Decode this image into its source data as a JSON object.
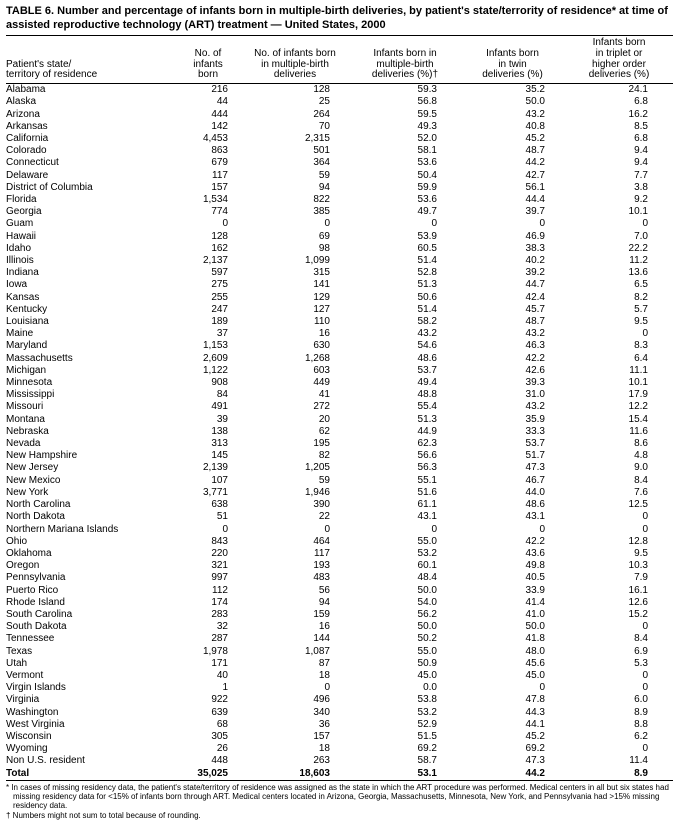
{
  "title": "TABLE 6. Number and percentage of infants born in multiple-birth deliveries, by patient's state/terrority of residence* at time of assisted reproductive technology (ART) treatment — United States, 2000",
  "table": {
    "columns": [
      {
        "lines": [
          "Patient's state/",
          "territory of residence"
        ]
      },
      {
        "lines": [
          "No. of",
          "infants",
          "born"
        ]
      },
      {
        "lines": [
          "No. of infants born",
          "in multiple-birth",
          "deliveries"
        ]
      },
      {
        "lines": [
          "Infants born in",
          "multiple-birth",
          "deliveries (%)†"
        ]
      },
      {
        "lines": [
          "Infants born",
          "in twin",
          "deliveries (%)"
        ]
      },
      {
        "lines": [
          "Infants born",
          "in triplet or",
          "higher order",
          "deliveries (%)"
        ]
      }
    ],
    "rows": [
      [
        "Alabama",
        "216",
        "128",
        "59.3",
        "35.2",
        "24.1"
      ],
      [
        "Alaska",
        "44",
        "25",
        "56.8",
        "50.0",
        "6.8"
      ],
      [
        "Arizona",
        "444",
        "264",
        "59.5",
        "43.2",
        "16.2"
      ],
      [
        "Arkansas",
        "142",
        "70",
        "49.3",
        "40.8",
        "8.5"
      ],
      [
        "California",
        "4,453",
        "2,315",
        "52.0",
        "45.2",
        "6.8"
      ],
      [
        "Colorado",
        "863",
        "501",
        "58.1",
        "48.7",
        "9.4"
      ],
      [
        "Connecticut",
        "679",
        "364",
        "53.6",
        "44.2",
        "9.4"
      ],
      [
        "Delaware",
        "117",
        "59",
        "50.4",
        "42.7",
        "7.7"
      ],
      [
        "District of Columbia",
        "157",
        "94",
        "59.9",
        "56.1",
        "3.8"
      ],
      [
        "Florida",
        "1,534",
        "822",
        "53.6",
        "44.4",
        "9.2"
      ],
      [
        "Georgia",
        "774",
        "385",
        "49.7",
        "39.7",
        "10.1"
      ],
      [
        "Guam",
        "0",
        "0",
        "0",
        "0",
        "0"
      ],
      [
        "Hawaii",
        "128",
        "69",
        "53.9",
        "46.9",
        "7.0"
      ],
      [
        "Idaho",
        "162",
        "98",
        "60.5",
        "38.3",
        "22.2"
      ],
      [
        "Illinois",
        "2,137",
        "1,099",
        "51.4",
        "40.2",
        "11.2"
      ],
      [
        "Indiana",
        "597",
        "315",
        "52.8",
        "39.2",
        "13.6"
      ],
      [
        "Iowa",
        "275",
        "141",
        "51.3",
        "44.7",
        "6.5"
      ],
      [
        "Kansas",
        "255",
        "129",
        "50.6",
        "42.4",
        "8.2"
      ],
      [
        "Kentucky",
        "247",
        "127",
        "51.4",
        "45.7",
        "5.7"
      ],
      [
        "Louisiana",
        "189",
        "110",
        "58.2",
        "48.7",
        "9.5"
      ],
      [
        "Maine",
        "37",
        "16",
        "43.2",
        "43.2",
        "0"
      ],
      [
        "Maryland",
        "1,153",
        "630",
        "54.6",
        "46.3",
        "8.3"
      ],
      [
        "Massachusetts",
        "2,609",
        "1,268",
        "48.6",
        "42.2",
        "6.4"
      ],
      [
        "Michigan",
        "1,122",
        "603",
        "53.7",
        "42.6",
        "11.1"
      ],
      [
        "Minnesota",
        "908",
        "449",
        "49.4",
        "39.3",
        "10.1"
      ],
      [
        "Mississippi",
        "84",
        "41",
        "48.8",
        "31.0",
        "17.9"
      ],
      [
        "Missouri",
        "491",
        "272",
        "55.4",
        "43.2",
        "12.2"
      ],
      [
        "Montana",
        "39",
        "20",
        "51.3",
        "35.9",
        "15.4"
      ],
      [
        "Nebraska",
        "138",
        "62",
        "44.9",
        "33.3",
        "11.6"
      ],
      [
        "Nevada",
        "313",
        "195",
        "62.3",
        "53.7",
        "8.6"
      ],
      [
        "New Hampshire",
        "145",
        "82",
        "56.6",
        "51.7",
        "4.8"
      ],
      [
        "New Jersey",
        "2,139",
        "1,205",
        "56.3",
        "47.3",
        "9.0"
      ],
      [
        "New Mexico",
        "107",
        "59",
        "55.1",
        "46.7",
        "8.4"
      ],
      [
        "New York",
        "3,771",
        "1,946",
        "51.6",
        "44.0",
        "7.6"
      ],
      [
        "North Carolina",
        "638",
        "390",
        "61.1",
        "48.6",
        "12.5"
      ],
      [
        "North Dakota",
        "51",
        "22",
        "43.1",
        "43.1",
        "0"
      ],
      [
        "Northern Mariana Islands",
        "0",
        "0",
        "0",
        "0",
        "0"
      ],
      [
        "Ohio",
        "843",
        "464",
        "55.0",
        "42.2",
        "12.8"
      ],
      [
        "Oklahoma",
        "220",
        "117",
        "53.2",
        "43.6",
        "9.5"
      ],
      [
        "Oregon",
        "321",
        "193",
        "60.1",
        "49.8",
        "10.3"
      ],
      [
        "Pennsylvania",
        "997",
        "483",
        "48.4",
        "40.5",
        "7.9"
      ],
      [
        "Puerto Rico",
        "112",
        "56",
        "50.0",
        "33.9",
        "16.1"
      ],
      [
        "Rhode Island",
        "174",
        "94",
        "54.0",
        "41.4",
        "12.6"
      ],
      [
        "South Carolina",
        "283",
        "159",
        "56.2",
        "41.0",
        "15.2"
      ],
      [
        "South Dakota",
        "32",
        "16",
        "50.0",
        "50.0",
        "0"
      ],
      [
        "Tennessee",
        "287",
        "144",
        "50.2",
        "41.8",
        "8.4"
      ],
      [
        "Texas",
        "1,978",
        "1,087",
        "55.0",
        "48.0",
        "6.9"
      ],
      [
        "Utah",
        "171",
        "87",
        "50.9",
        "45.6",
        "5.3"
      ],
      [
        "Vermont",
        "40",
        "18",
        "45.0",
        "45.0",
        "0"
      ],
      [
        "Virgin Islands",
        "1",
        "0",
        "0.0",
        "0",
        "0"
      ],
      [
        "Virginia",
        "922",
        "496",
        "53.8",
        "47.8",
        "6.0"
      ],
      [
        "Washington",
        "639",
        "340",
        "53.2",
        "44.3",
        "8.9"
      ],
      [
        "West Virginia",
        "68",
        "36",
        "52.9",
        "44.1",
        "8.8"
      ],
      [
        "Wisconsin",
        "305",
        "157",
        "51.5",
        "45.2",
        "6.2"
      ],
      [
        "Wyoming",
        "26",
        "18",
        "69.2",
        "69.2",
        "0"
      ],
      [
        "Non U.S. resident",
        "448",
        "263",
        "58.7",
        "47.3",
        "11.4"
      ]
    ],
    "total_row": [
      "Total",
      "35,025",
      "18,603",
      "53.1",
      "44.2",
      "8.9"
    ]
  },
  "footnotes": [
    "* In cases of missing residency data, the patient's state/territory of residence was assigned as the state in which the ART procedure was performed. Medical centers in all but six states had missing residency data for <15% of infants born through ART. Medical centers located in Arizona, Georgia, Massachusetts, Minnesota, New York, and Pennsylvania had >15% missing residency data.",
    "† Numbers might not sum to total because of rounding."
  ]
}
